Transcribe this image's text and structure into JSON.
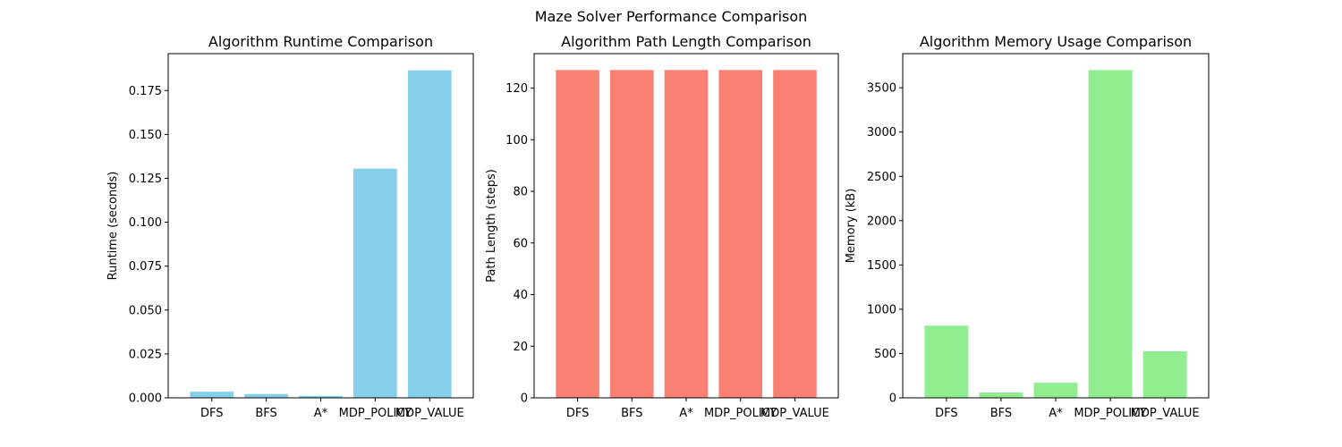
{
  "suptitle": "Maze Solver Performance Comparison",
  "chart_data": [
    {
      "type": "bar",
      "title": "Algorithm Runtime Comparison",
      "xlabel": "",
      "ylabel": "Runtime (seconds)",
      "categories": [
        "DFS",
        "BFS",
        "A*",
        "MDP_POLICY",
        "MDP_VALUE"
      ],
      "values": [
        0.0035,
        0.0022,
        0.0011,
        0.1305,
        0.1865
      ],
      "ylim": [
        0,
        0.196
      ],
      "yticks": [
        0.0,
        0.025,
        0.05,
        0.075,
        0.1,
        0.125,
        0.15,
        0.175
      ],
      "ytick_labels": [
        "0.000",
        "0.025",
        "0.050",
        "0.075",
        "0.100",
        "0.125",
        "0.150",
        "0.175"
      ],
      "color": "#87ceeb",
      "grid": false
    },
    {
      "type": "bar",
      "title": "Algorithm Path Length Comparison",
      "xlabel": "",
      "ylabel": "Path Length (steps)",
      "categories": [
        "DFS",
        "BFS",
        "A*",
        "MDP_POLICY",
        "MDP_VALUE"
      ],
      "values": [
        127,
        127,
        127,
        127,
        127
      ],
      "ylim": [
        0,
        133.35
      ],
      "yticks": [
        0,
        20,
        40,
        60,
        80,
        100,
        120
      ],
      "ytick_labels": [
        "0",
        "20",
        "40",
        "60",
        "80",
        "100",
        "120"
      ],
      "color": "#fa8072",
      "grid": false
    },
    {
      "type": "bar",
      "title": "Algorithm Memory Usage Comparison",
      "xlabel": "",
      "ylabel": "Memory (kB)",
      "categories": [
        "DFS",
        "BFS",
        "A*",
        "MDP_POLICY",
        "MDP_VALUE"
      ],
      "values": [
        815,
        60,
        170,
        3700,
        525
      ],
      "ylim": [
        0,
        3885
      ],
      "yticks": [
        0,
        500,
        1000,
        1500,
        2000,
        2500,
        3000,
        3500
      ],
      "ytick_labels": [
        "0",
        "500",
        "1000",
        "1500",
        "2000",
        "2500",
        "3000",
        "3500"
      ],
      "color": "#90ee90",
      "grid": false
    }
  ]
}
